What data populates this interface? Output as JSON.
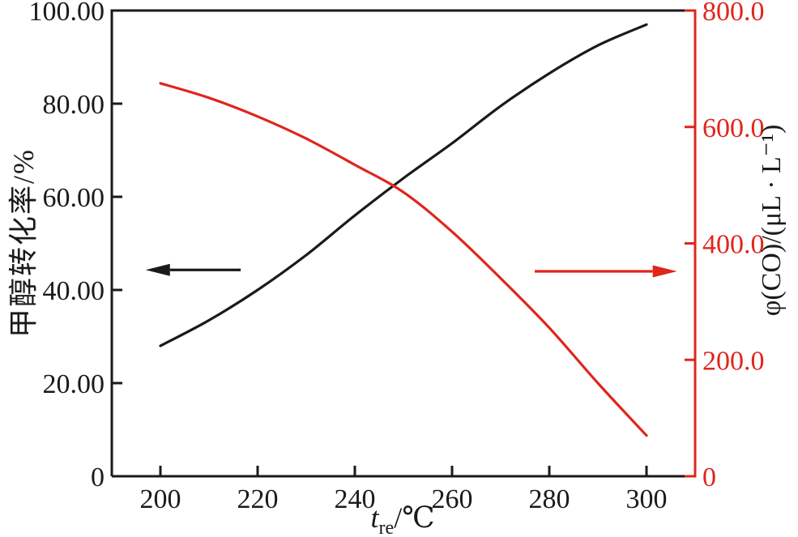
{
  "figure": {
    "background": "#ffffff",
    "black_color": "#1a1a1a",
    "red_color": "#e0251c"
  },
  "axes": {
    "left_title": "甲醇转化率/%",
    "right_title": "φ(CO)/(μL · L⁻¹)",
    "x_title": {
      "symbol": "t",
      "subscript": "re",
      "unit": "/℃"
    }
  },
  "chart_data": {
    "type": "line",
    "title": "",
    "xlabel": "t_re/℃",
    "ylabel_left": "甲醇转化率/%",
    "ylabel_right": "φ(CO)/(μL · L⁻¹)",
    "x": [
      200,
      210,
      220,
      230,
      240,
      250,
      260,
      270,
      280,
      290,
      300
    ],
    "series": [
      {
        "name": "甲醇转化率 (methanol conversion, left axis)",
        "axis": "left",
        "color": "#1a1a1a",
        "values": [
          28,
          33.5,
          40,
          47.5,
          56,
          64,
          71.5,
          79.5,
          86.5,
          92.5,
          97
        ]
      },
      {
        "name": "φ(CO) (CO concentration, right axis)",
        "axis": "right",
        "color": "#e0251c",
        "values": [
          675,
          650,
          618,
          580,
          535,
          488,
          420,
          340,
          255,
          160,
          70
        ]
      }
    ],
    "xlim": [
      190,
      310
    ],
    "ylim_left": [
      0,
      100
    ],
    "ylim_right": [
      0,
      800
    ],
    "x_ticks": [
      200,
      220,
      240,
      260,
      280,
      300
    ],
    "x_tick_labels": [
      "200",
      "220",
      "240",
      "260",
      "280",
      "300"
    ],
    "y_ticks_left": [
      0,
      20,
      40,
      60,
      80,
      100
    ],
    "y_tick_labels_left": [
      "0",
      "20.00",
      "40.00",
      "60.00",
      "80.00",
      "100.00"
    ],
    "y_ticks_right": [
      0,
      200,
      400,
      600,
      800
    ],
    "y_tick_labels_right": [
      "0",
      "200.0",
      "400.0",
      "600.0",
      "800.0"
    ],
    "grid": false,
    "legend": "none",
    "annotations": [
      {
        "name": "left-axis-arrow",
        "direction": "left",
        "color": "#1a1a1a",
        "fx_start": 0.221,
        "fx_tip": 0.058,
        "fy": 0.557
      },
      {
        "name": "right-axis-arrow",
        "direction": "right",
        "color": "#e0251c",
        "fx_start": 0.725,
        "fx_tip": 0.969,
        "fy": 0.56
      }
    ]
  }
}
